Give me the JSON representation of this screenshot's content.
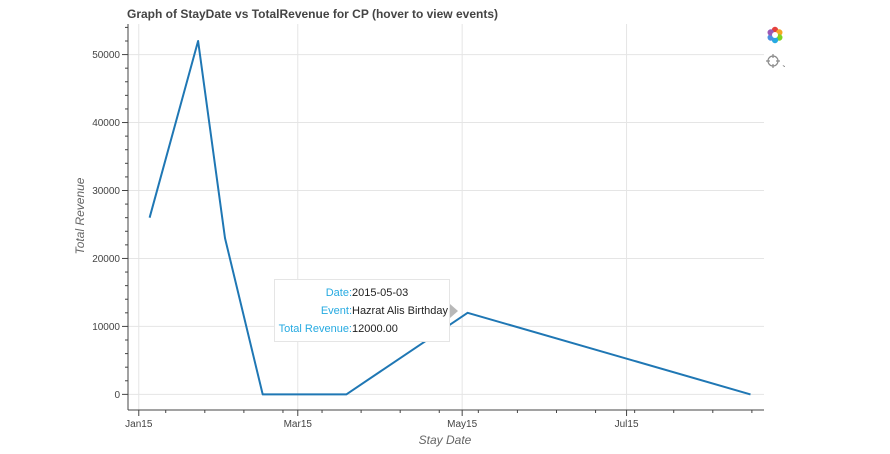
{
  "toolbar": {
    "icons": [
      "bokeh-logo-icon",
      "crosshair-hover-icon"
    ],
    "hover_caret": "⌄"
  },
  "tooltip": {
    "rows": [
      {
        "key": "Date:",
        "value": "2015-05-03"
      },
      {
        "key": "Event:",
        "value": "Hazrat Alis Birthday"
      },
      {
        "key": "Total Revenue:",
        "value": "12000.00"
      }
    ]
  },
  "chart_data": {
    "type": "line",
    "title": "Graph of StayDate vs TotalRevenue for CP (hover to view events)",
    "xlabel": "Stay Date",
    "ylabel": "Total Revenue",
    "x_axis_type": "datetime",
    "xlim": [
      "2015-01-11",
      "2015-09-04"
    ],
    "ylim": [
      -2300,
      54500
    ],
    "x_ticks": [
      {
        "value": "2015-01-15",
        "label": "Jan15"
      },
      {
        "value": "2015-03-15",
        "label": "Mar15"
      },
      {
        "value": "2015-05-15",
        "label": "May15"
      },
      {
        "value": "2015-07-15",
        "label": "Jul15"
      }
    ],
    "y_ticks": [
      0,
      10000,
      20000,
      30000,
      40000,
      50000
    ],
    "y_tick_labels": [
      "0",
      "10000",
      "20000",
      "30000",
      "40000",
      "50000"
    ],
    "grid": true,
    "line_color": "#1f77b4",
    "series": [
      {
        "x": [
          "2015-01-19",
          "2015-02-06",
          "2015-02-16",
          "2015-03-02",
          "2015-04-02",
          "2015-05-17",
          "2015-08-30"
        ],
        "y": [
          26000,
          52000,
          23000,
          0,
          0,
          12000,
          0
        ]
      }
    ]
  }
}
